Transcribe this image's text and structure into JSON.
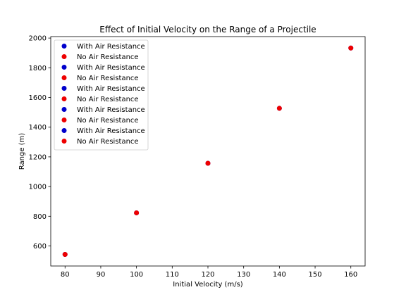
{
  "chart_data": {
    "type": "scatter",
    "title": "Effect of Initial Velocity on the Range of a Projectile",
    "xlabel": "Initial Velocity (m/s)",
    "ylabel": "Range (m)",
    "xlim": [
      76,
      164
    ],
    "ylim": [
      465,
      2010
    ],
    "xticks": [
      80,
      90,
      100,
      110,
      120,
      130,
      140,
      150,
      160
    ],
    "yticks": [
      600,
      800,
      1000,
      1200,
      1400,
      1600,
      1800,
      2000
    ],
    "grid": false,
    "legend_position": "upper-left",
    "legend": [
      {
        "label": "With Air Resistance",
        "color": "#0000cc"
      },
      {
        "label": "No Air Resistance",
        "color": "#ee0000"
      },
      {
        "label": "With Air Resistance",
        "color": "#0000cc"
      },
      {
        "label": "No Air Resistance",
        "color": "#ee0000"
      },
      {
        "label": "With Air Resistance",
        "color": "#0000cc"
      },
      {
        "label": "No Air Resistance",
        "color": "#ee0000"
      },
      {
        "label": "With Air Resistance",
        "color": "#0000cc"
      },
      {
        "label": "No Air Resistance",
        "color": "#ee0000"
      },
      {
        "label": "With Air Resistance",
        "color": "#0000cc"
      },
      {
        "label": "No Air Resistance",
        "color": "#ee0000"
      }
    ],
    "series": [
      {
        "name": "With Air Resistance",
        "color": "#0000cc",
        "x": [
          80
        ],
        "y": [
          543
        ]
      },
      {
        "name": "No Air Resistance",
        "color": "#ee0000",
        "x": [
          80
        ],
        "y": [
          543
        ]
      },
      {
        "name": "With Air Resistance",
        "color": "#0000cc",
        "x": [
          100
        ],
        "y": [
          823
        ]
      },
      {
        "name": "No Air Resistance",
        "color": "#ee0000",
        "x": [
          100
        ],
        "y": [
          823
        ]
      },
      {
        "name": "With Air Resistance",
        "color": "#0000cc",
        "x": [
          120
        ],
        "y": [
          1157
        ]
      },
      {
        "name": "No Air Resistance",
        "color": "#ee0000",
        "x": [
          120
        ],
        "y": [
          1157
        ]
      },
      {
        "name": "With Air Resistance",
        "color": "#0000cc",
        "x": [
          140
        ],
        "y": [
          1527
        ]
      },
      {
        "name": "No Air Resistance",
        "color": "#ee0000",
        "x": [
          140
        ],
        "y": [
          1527
        ]
      },
      {
        "name": "With Air Resistance",
        "color": "#0000cc",
        "x": [
          160
        ],
        "y": [
          1933
        ]
      },
      {
        "name": "No Air Resistance",
        "color": "#ee0000",
        "x": [
          160
        ],
        "y": [
          1933
        ]
      }
    ]
  }
}
